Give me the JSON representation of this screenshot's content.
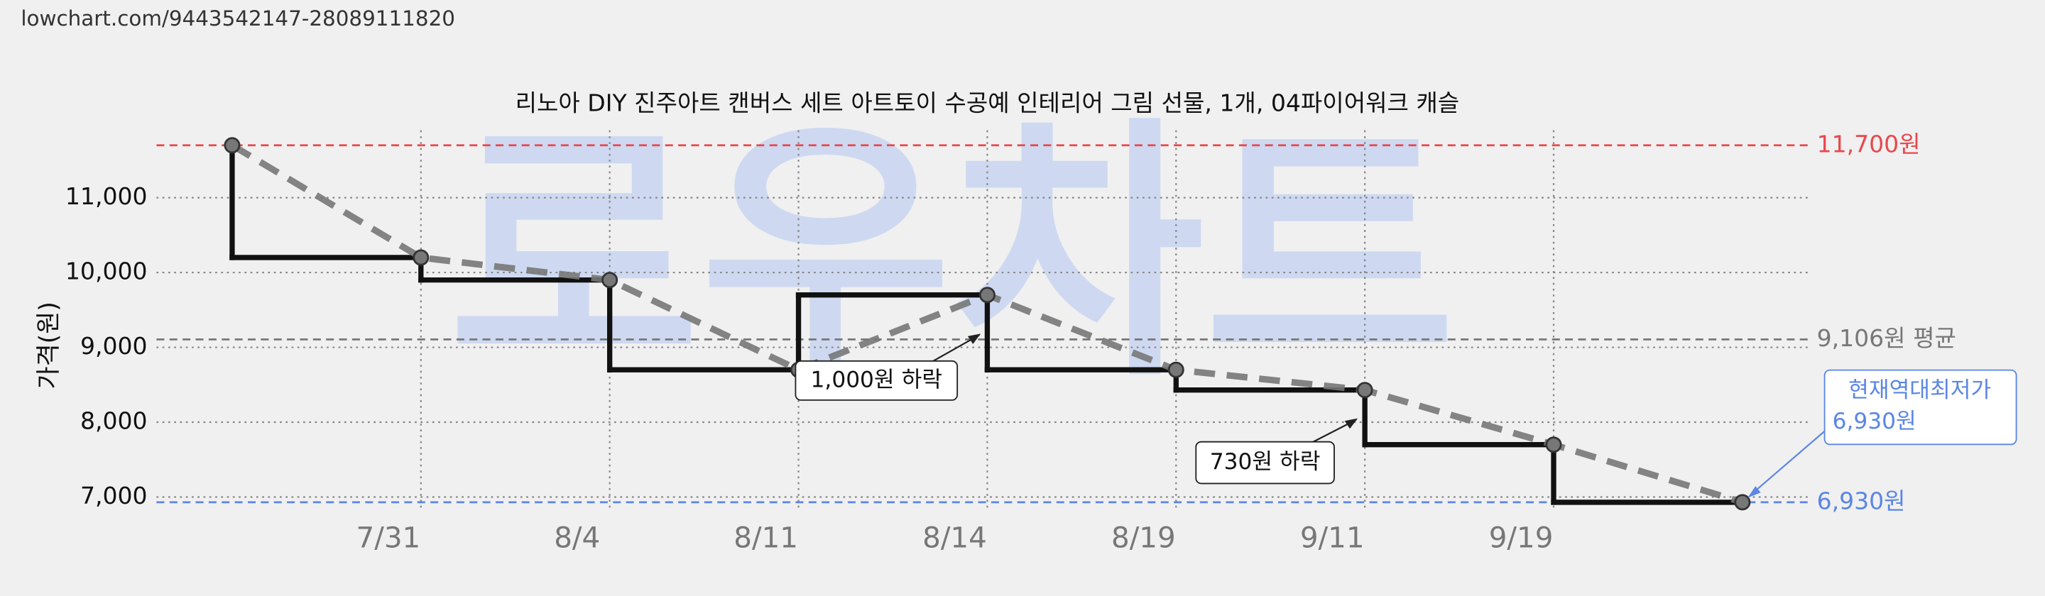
{
  "url": "lowchart.com/9443542147-28089111820",
  "watermark": "로우차트",
  "chart_data": {
    "type": "step",
    "title": "리노아 DIY 진주아트 캔버스 세트 아트토이 수공예 인테리어 그림 선물, 1개, 04파이어워크 캐슬",
    "y_label": "가격(원)",
    "categories": [
      null,
      "7/31",
      "8/4",
      "8/11",
      "8/14",
      "8/19",
      "9/11",
      "9/19",
      null
    ],
    "values": [
      11700,
      10200,
      9900,
      8700,
      9700,
      8700,
      8430,
      7700,
      6930
    ],
    "color": "#111111",
    "trend_color": "#777777",
    "ylim": [
      6850,
      11900
    ],
    "yticks": [
      {
        "value": 7000,
        "label": "7,000"
      },
      {
        "value": 8000,
        "label": "8,000"
      },
      {
        "value": 9000,
        "label": "9,000"
      },
      {
        "value": 10000,
        "label": "10,000"
      },
      {
        "value": 11000,
        "label": "11,000"
      }
    ],
    "grid": true,
    "ref_lines": [
      {
        "value": 11700,
        "label": "11,700원",
        "color": "#e8484d"
      },
      {
        "value": 9106,
        "label": "9,106원 평균",
        "color": "#777777"
      },
      {
        "value": 6930,
        "label": "6,930원",
        "color": "#5b86e5"
      }
    ],
    "annotations": [
      "1,000원 하락",
      "730원 하락"
    ],
    "callout": [
      "현재역대최저가",
      "6,930원"
    ]
  }
}
